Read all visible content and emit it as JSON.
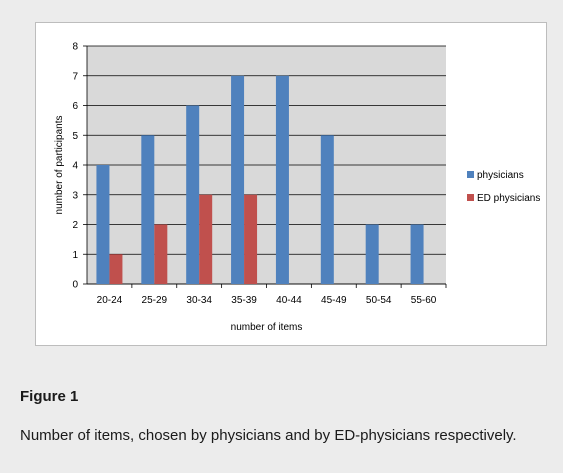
{
  "figure": {
    "title": "Figure 1",
    "caption": "Number of items, chosen by physicians and by ED-physicians respectively."
  },
  "chart_data": {
    "type": "bar",
    "categories": [
      "20-24",
      "25-29",
      "30-34",
      "35-39",
      "40-44",
      "45-49",
      "50-54",
      "55-60"
    ],
    "series": [
      {
        "name": "physicians",
        "color": "#4f81bd",
        "values": [
          4,
          5,
          6,
          7,
          7,
          5,
          2,
          2
        ]
      },
      {
        "name": "ED physicians",
        "color": "#c0504d",
        "values": [
          1,
          2,
          3,
          3,
          0,
          0,
          0,
          0
        ]
      }
    ],
    "xlabel": "number of items",
    "ylabel": "number of participants",
    "ylim": [
      0,
      8
    ],
    "yticks": [
      0,
      1,
      2,
      3,
      4,
      5,
      6,
      7,
      8
    ],
    "grid": true,
    "legend_position": "right",
    "plot_background": "#d9d9d9"
  }
}
